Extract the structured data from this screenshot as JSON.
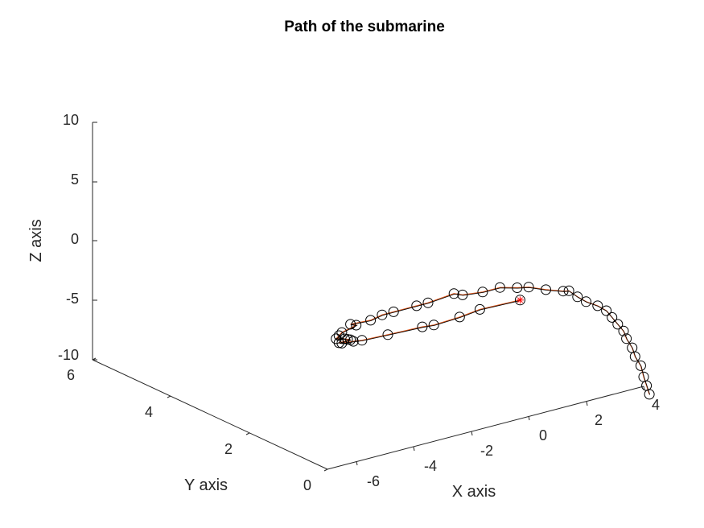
{
  "chart_data": {
    "type": "scatter",
    "title": "Path of the submarine",
    "xlabel": "X axis",
    "ylabel": "Y axis",
    "zlabel": "Z axis",
    "xlim": [
      -7,
      4
    ],
    "ylim": [
      0,
      6
    ],
    "zlim": [
      -10,
      10
    ],
    "x_ticks": [
      "-6",
      "-4",
      "-2",
      "0",
      "2",
      "4"
    ],
    "y_ticks": [
      "0",
      "2",
      "4",
      "6"
    ],
    "z_ticks": [
      "-10",
      "-5",
      "0",
      "5",
      "10"
    ],
    "grid": false,
    "series": [
      {
        "marker": "circle",
        "color": "#000000",
        "line_color": "#D95319",
        "points": [
          [
            -0.3,
            0.0,
            0.0
          ],
          [
            -1.7,
            0.0,
            0.1
          ],
          [
            -2.4,
            0.0,
            -0.1
          ],
          [
            -3.3,
            0.0,
            -0.2
          ],
          [
            -3.7,
            0.0,
            -0.1
          ],
          [
            -4.9,
            0.0,
            0.0
          ],
          [
            -5.8,
            0.0,
            0.1
          ],
          [
            -6.1,
            0.0,
            0.2
          ],
          [
            -6.5,
            0.0,
            0.3
          ],
          [
            -6.6,
            0.0,
            0.4
          ],
          [
            -6.2,
            0.0,
            0.4
          ],
          [
            -6.3,
            0.0,
            0.5
          ],
          [
            -6.4,
            0.0,
            0.6
          ],
          [
            -6.7,
            0.0,
            0.8
          ],
          [
            -6.6,
            0.0,
            1.0
          ],
          [
            -6.5,
            0.0,
            1.2
          ],
          [
            -6.0,
            0.0,
            1.5
          ],
          [
            -6.2,
            0.0,
            1.7
          ],
          [
            -5.5,
            0.0,
            1.6
          ],
          [
            -5.1,
            0.0,
            1.8
          ],
          [
            -4.7,
            0.0,
            1.8
          ],
          [
            -3.9,
            0.0,
            1.8
          ],
          [
            -3.5,
            0.0,
            1.8
          ],
          [
            -2.6,
            0.0,
            2.0
          ],
          [
            -2.3,
            0.0,
            1.7
          ],
          [
            -1.6,
            0.0,
            1.5
          ],
          [
            -1.0,
            0.0,
            1.5
          ],
          [
            -0.4,
            0.0,
            1.1
          ],
          [
            0.0,
            0.0,
            0.9
          ],
          [
            0.6,
            0.0,
            0.3
          ],
          [
            1.2,
            0.0,
            -0.2
          ],
          [
            1.4,
            0.0,
            -0.3
          ],
          [
            1.7,
            0.0,
            -1.0
          ],
          [
            2.0,
            0.0,
            -1.6
          ],
          [
            2.4,
            0.0,
            -2.2
          ],
          [
            2.7,
            0.0,
            -2.8
          ],
          [
            2.9,
            0.0,
            -3.5
          ],
          [
            3.1,
            0.0,
            -4.2
          ],
          [
            3.3,
            0.0,
            -4.9
          ],
          [
            3.4,
            0.0,
            -5.6
          ],
          [
            3.6,
            0.0,
            -6.5
          ],
          [
            3.7,
            0.0,
            -7.3
          ],
          [
            3.9,
            0.0,
            -8.2
          ],
          [
            4.0,
            0.0,
            -9.2
          ],
          [
            4.1,
            0.0,
            -10.0
          ],
          [
            4.2,
            0.0,
            -10.8
          ]
        ]
      }
    ],
    "start_marker": {
      "shape": "asterisk",
      "color": "#FF0000"
    }
  }
}
